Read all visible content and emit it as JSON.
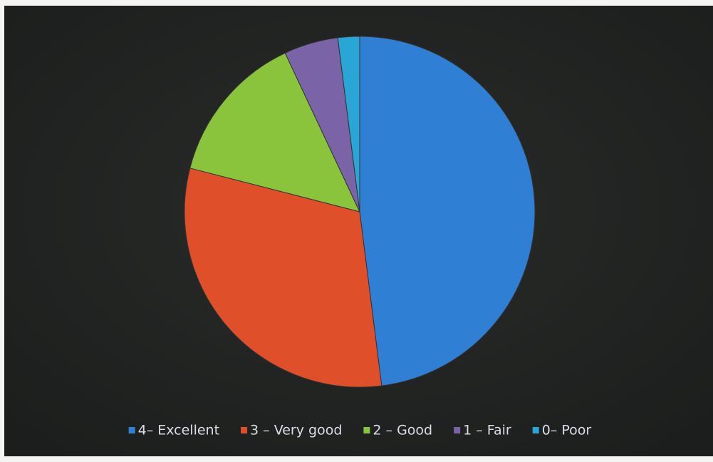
{
  "chart_data": {
    "type": "pie",
    "categories": [
      "4– Excellent",
      "3 – Very good",
      "2 – Good",
      "1 – Fair",
      "0– Poor"
    ],
    "values": [
      48,
      31,
      14,
      5,
      2
    ],
    "colors": [
      "#2f7fd4",
      "#de4f2a",
      "#8ac43c",
      "#7a63a6",
      "#2aa6d6"
    ],
    "legend": "bottom"
  }
}
